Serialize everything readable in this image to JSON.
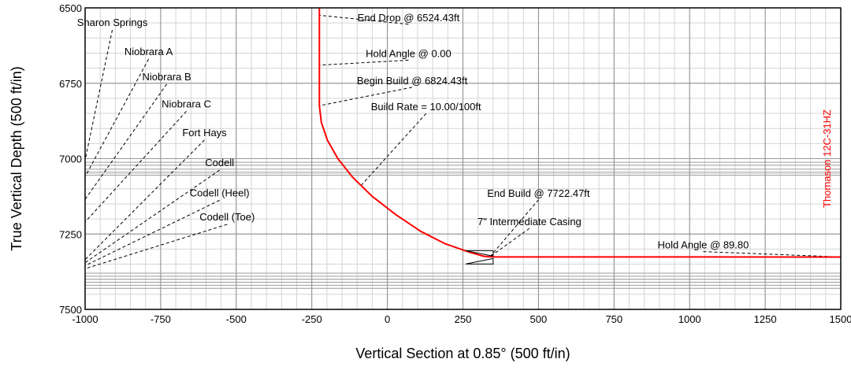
{
  "chart_data": {
    "type": "line",
    "xlabel": "Vertical Section at 0.85° (500 ft/in)",
    "ylabel": "True Vertical Depth (500 ft/in)",
    "xlim": [
      -1000,
      1500
    ],
    "ylim": [
      6500,
      7500
    ],
    "y_inverted": true,
    "grid": true,
    "x_ticks": [
      -1000,
      -750,
      -500,
      -250,
      0,
      250,
      500,
      750,
      1000,
      1250,
      1500
    ],
    "y_ticks": [
      6500,
      6750,
      7000,
      7250,
      7500
    ],
    "well_name": "Thomason 12C-31HZ",
    "line_color": "#ff0000",
    "formation_depths": [
      7000,
      7012,
      7022,
      7035,
      7045,
      7055,
      7380,
      7390,
      7400,
      7410,
      7420,
      7430
    ],
    "series": [
      {
        "name": "Thomason 12C-31HZ",
        "points": [
          [
            -225,
            6500
          ],
          [
            -225,
            6824.43
          ],
          [
            -218.5,
            6879.7
          ],
          [
            -198.3,
            6939.0
          ],
          [
            -163.8,
            7000.0
          ],
          [
            -114.6,
            7062.0
          ],
          [
            -50.5,
            7124.8
          ],
          [
            29.0,
            7186.5
          ],
          [
            110.0,
            7241.0
          ],
          [
            190.0,
            7281.6
          ],
          [
            270.0,
            7310.0
          ],
          [
            320.0,
            7324.0
          ],
          [
            350.0,
            7326.0
          ],
          [
            775.0,
            7326.2
          ],
          [
            1500,
            7326.5
          ]
        ]
      }
    ],
    "annotations": [
      {
        "text": "End Drop @ 6524.43ft",
        "x": -225,
        "y": 6524.43,
        "label_x": 70,
        "label_y": 6544
      },
      {
        "text": "Hold Angle @ 0.00",
        "x": -225,
        "y": 6690,
        "label_x": 70,
        "label_y": 6663
      },
      {
        "text": "Begin Build @ 6824.43ft",
        "x": -225,
        "y": 6824.43,
        "label_x": 82,
        "label_y": 6753
      },
      {
        "text": "Build Rate = 10.00/100ft",
        "x": -85,
        "y": 7087,
        "label_x": 128,
        "label_y": 6840
      },
      {
        "text": "End Build @ 7722.47ft",
        "x": 340,
        "y": 7325,
        "label_x": 500,
        "label_y": 7126
      },
      {
        "text": "7\" Intermediate Casing",
        "x": 340,
        "y": 7325,
        "label_x": 470,
        "label_y": 7221
      },
      {
        "text": "Hold Angle @ 89.80",
        "x": 1500,
        "y": 7326,
        "label_x": 1045,
        "label_y": 7298
      }
    ],
    "formations": [
      {
        "name": "Sharon Springs",
        "label_x": -910,
        "label_y": 6560,
        "end_x": -1000,
        "end_y": 7005
      },
      {
        "name": "Niobrara A",
        "label_x": -790,
        "label_y": 6657,
        "end_x": -1000,
        "end_y": 7060
      },
      {
        "name": "Niobrara B",
        "label_x": -730,
        "label_y": 6740,
        "end_x": -1000,
        "end_y": 7135
      },
      {
        "name": "Niobrara C",
        "label_x": -665,
        "label_y": 6830,
        "end_x": -1000,
        "end_y": 7210
      },
      {
        "name": "Fort Hays",
        "label_x": -605,
        "label_y": 6925,
        "end_x": -1000,
        "end_y": 7335
      },
      {
        "name": "Codell",
        "label_x": -555,
        "label_y": 7025,
        "end_x": -1000,
        "end_y": 7345
      },
      {
        "name": "Codell (Heel)",
        "label_x": -555,
        "label_y": 7125,
        "end_x": -1000,
        "end_y": 7355
      },
      {
        "name": "Codell (Toe)",
        "label_x": -530,
        "label_y": 7205,
        "end_x": -1000,
        "end_y": 7365
      }
    ]
  }
}
